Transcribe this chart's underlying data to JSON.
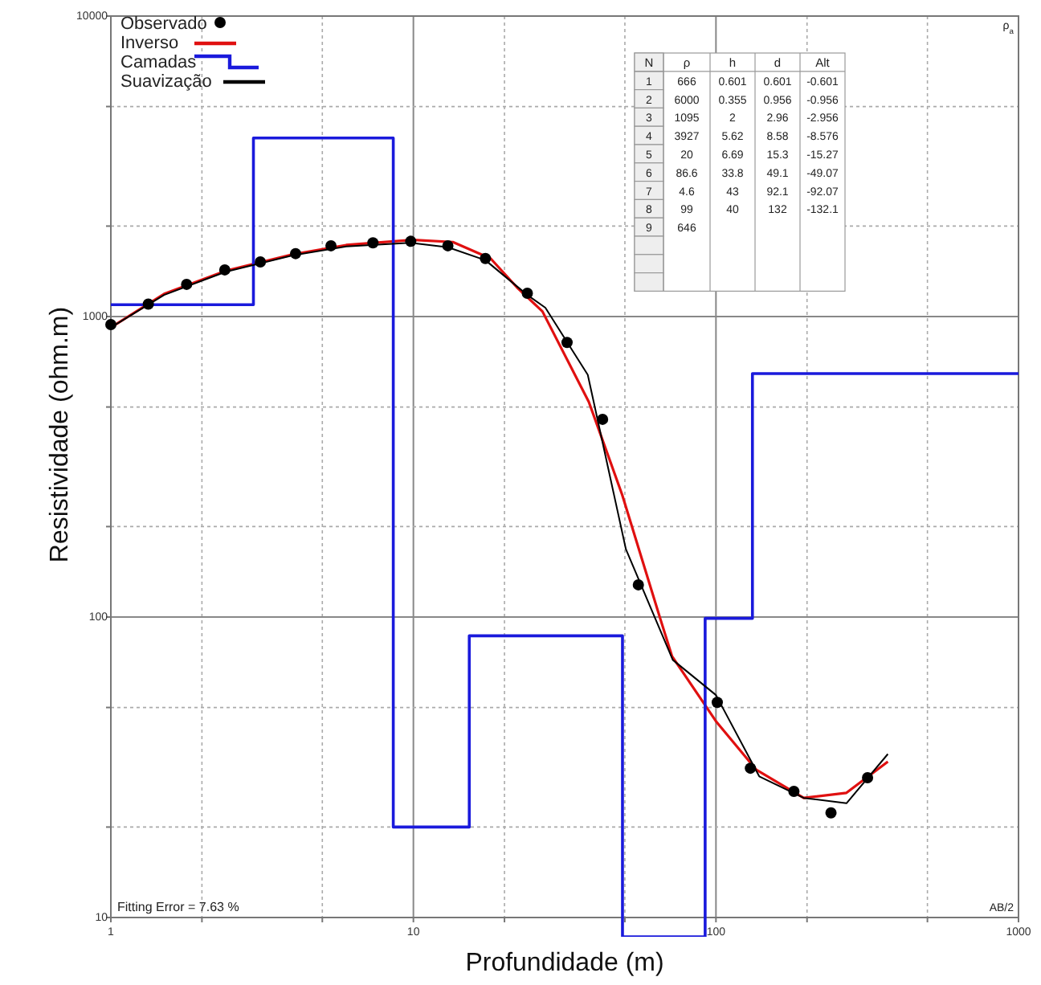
{
  "chart_data": {
    "type": "line",
    "xlabel": "Profundidade (m)",
    "ylabel": "Resistividade (ohm.m)",
    "log": "xy",
    "grid": true,
    "legend": "top left",
    "xlim": [
      1,
      1000
    ],
    "ylim": [
      10,
      10000
    ],
    "xticks": [
      1,
      {
        "value": 2,
        "label": null
      },
      {
        "value": 5,
        "label": null
      },
      10,
      {
        "value": 20,
        "label": null
      },
      {
        "value": 50,
        "label": null
      },
      100,
      {
        "value": 200,
        "label": null
      },
      {
        "value": 500,
        "label": null
      },
      1000
    ],
    "yticks": [
      10,
      {
        "value": 20,
        "label": null
      },
      {
        "value": 50,
        "label": null
      },
      100,
      {
        "value": 200,
        "label": null
      },
      {
        "value": 500,
        "label": null
      },
      1000,
      {
        "value": 2000,
        "label": null
      },
      {
        "value": 5000,
        "label": null
      },
      10000
    ],
    "series": [
      {
        "name": "Observado",
        "type": "scatter",
        "marker": "circle",
        "color": "#000000",
        "x": [
          1,
          1.33,
          1.78,
          2.38,
          3.12,
          4.08,
          5.34,
          7.35,
          9.8,
          13,
          17.3,
          23.8,
          32.2,
          42.2,
          55.4,
          101,
          130,
          181,
          240,
          317
        ],
        "values": [
          940,
          1100,
          1280,
          1430,
          1520,
          1620,
          1720,
          1760,
          1780,
          1720,
          1560,
          1195,
          820,
          455,
          128,
          52,
          31.4,
          26.3,
          22.3,
          29.2
        ]
      },
      {
        "name": "Inverso",
        "color": "#e01010",
        "x": [
          1,
          1.5,
          2.4,
          4,
          6,
          10,
          13.5,
          18,
          22,
          26.7,
          38,
          49,
          65,
          71.6,
          100,
          136,
          195,
          270,
          370
        ],
        "values": [
          920,
          1190,
          1420,
          1610,
          1730,
          1800,
          1770,
          1560,
          1250,
          1040,
          520,
          255,
          101,
          74,
          45,
          31,
          25,
          26,
          33
        ]
      },
      {
        "name": "Camadas",
        "type": "step",
        "color": "#1a1adc",
        "x": [
          1,
          2.96,
          8.58,
          15.3,
          49.1,
          92.1,
          132,
          1000
        ],
        "values": [
          1095,
          3927,
          20,
          86.6,
          null,
          99,
          646,
          646
        ]
      },
      {
        "name": "Suavização",
        "color": "#000000",
        "x": [
          1,
          1.5,
          2.4,
          4,
          6,
          9.8,
          13,
          17.3,
          23.8,
          27.3,
          37.7,
          50.4,
          72,
          100,
          139,
          195,
          270,
          370
        ],
        "values": [
          920,
          1180,
          1410,
          1600,
          1710,
          1760,
          1700,
          1540,
          1180,
          1070,
          640,
          168,
          72,
          55,
          29.5,
          25,
          24,
          35
        ]
      }
    ],
    "annotations": [
      "Fitting Error = 7.63 %",
      "AB/2",
      "ρ$_{a}$",
      "N ρ h d Alt",
      "1 666 0.601 0.601 -0.601",
      "2 6000 0.355 0.956 -0.956",
      "3 1095 2 2.96 -2.956",
      "4 3927 5.62 8.58 -8.576",
      "5 20 6.69 15.3 -15.27",
      "6 86.6 33.8 49.1 -49.07",
      "7 4.6 43 92.1 -92.07",
      "8 99 40 132 -132.1",
      "9 646"
    ]
  }
}
